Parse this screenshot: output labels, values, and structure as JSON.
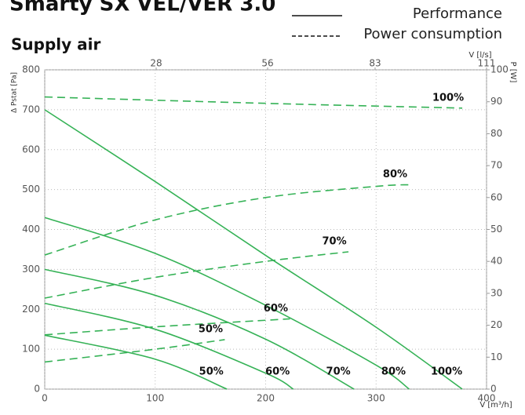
{
  "chart_data": {
    "type": "line",
    "title": "Smarty SX VEL/VER 3.0",
    "subtitle": "Supply air",
    "legend": [
      {
        "name": "Performance",
        "style": "solid"
      },
      {
        "name": "Power consumption",
        "style": "dashed"
      }
    ],
    "xlabel": "V [m³/h]",
    "x2label": "V [l/s]",
    "ylabel": "Δ Pstat [Pa]",
    "y2label": "P [W]",
    "xlim": [
      0,
      400
    ],
    "xticks": [
      0,
      100,
      200,
      300,
      400
    ],
    "x2lim": [
      0,
      111
    ],
    "x2ticks": [
      28,
      56,
      83,
      111
    ],
    "ylim": [
      0,
      800
    ],
    "yticks": [
      0,
      100,
      200,
      300,
      400,
      500,
      600,
      700,
      800
    ],
    "y2lim": [
      0,
      100
    ],
    "y2ticks": [
      0,
      10,
      20,
      30,
      40,
      50,
      60,
      70,
      80,
      90,
      100
    ],
    "grid": true,
    "color": "#35b256",
    "series": [
      {
        "name": "100%",
        "style": "solid",
        "x": [
          0,
          100,
          200,
          300,
          378
        ],
        "values": [
          700,
          520,
          335,
          155,
          0
        ]
      },
      {
        "name": "80%",
        "style": "solid",
        "x": [
          0,
          100,
          200,
          300,
          330
        ],
        "values": [
          430,
          340,
          210,
          60,
          0
        ]
      },
      {
        "name": "70%",
        "style": "solid",
        "x": [
          0,
          100,
          200,
          280
        ],
        "values": [
          300,
          235,
          125,
          0
        ]
      },
      {
        "name": "60%",
        "style": "solid",
        "x": [
          0,
          100,
          200,
          225
        ],
        "values": [
          215,
          150,
          40,
          0
        ]
      },
      {
        "name": "50%",
        "style": "solid",
        "x": [
          0,
          100,
          165
        ],
        "values": [
          135,
          75,
          0
        ]
      },
      {
        "name": "100%",
        "style": "dashed",
        "axis": "y2",
        "x": [
          0,
          200,
          378
        ],
        "values": [
          91.5,
          89.5,
          88
        ]
      },
      {
        "name": "80%",
        "style": "dashed",
        "axis": "y2",
        "x": [
          0,
          100,
          200,
          300,
          330
        ],
        "values": [
          42,
          53,
          60,
          63.5,
          64
        ]
      },
      {
        "name": "70%",
        "style": "dashed",
        "axis": "y2",
        "x": [
          0,
          100,
          200,
          275
        ],
        "values": [
          28.5,
          35,
          40,
          43
        ]
      },
      {
        "name": "60%",
        "style": "dashed",
        "axis": "y2",
        "x": [
          0,
          100,
          222
        ],
        "values": [
          17,
          19.5,
          22
        ]
      },
      {
        "name": "50%",
        "style": "dashed",
        "axis": "y2",
        "x": [
          0,
          100,
          163
        ],
        "values": [
          8.5,
          12.5,
          15.5
        ]
      }
    ]
  }
}
